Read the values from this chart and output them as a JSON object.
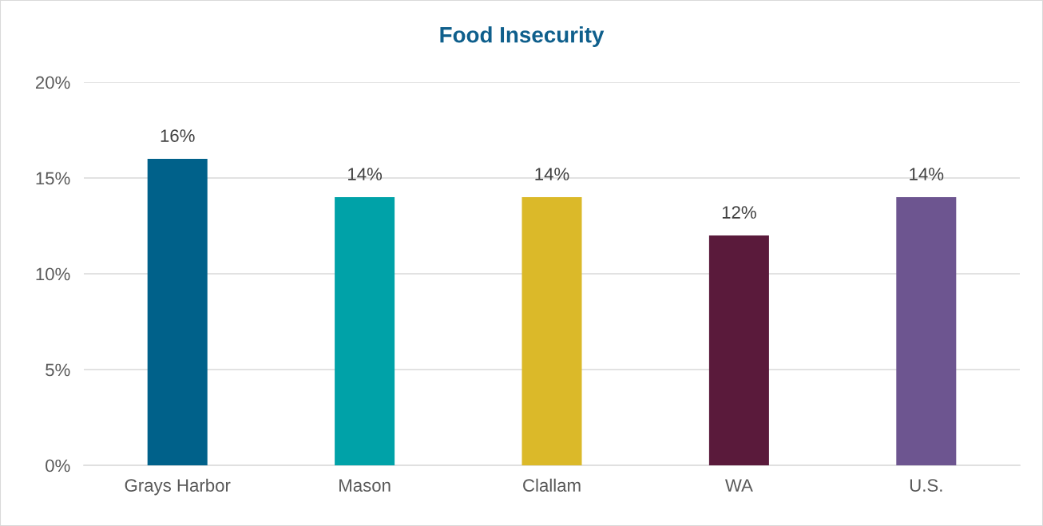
{
  "chart_data": {
    "type": "bar",
    "title": "Food Insecurity",
    "categories": [
      "Grays Harbor",
      "Mason",
      "Clallam",
      "WA",
      "U.S."
    ],
    "values": [
      16,
      14,
      14,
      12,
      14
    ],
    "colors": [
      "#00618a",
      "#00a2a8",
      "#dbb929",
      "#5a1a3b",
      "#6d5590"
    ],
    "value_labels": [
      "16%",
      "14%",
      "14%",
      "12%",
      "14%"
    ],
    "ylim": [
      0,
      20
    ],
    "yticks": [
      {
        "value": 0,
        "label": "0%"
      },
      {
        "value": 5,
        "label": "5%"
      },
      {
        "value": 10,
        "label": "10%"
      },
      {
        "value": 15,
        "label": "15%"
      },
      {
        "value": 20,
        "label": "20%"
      }
    ],
    "grid": "y",
    "legend": false
  }
}
